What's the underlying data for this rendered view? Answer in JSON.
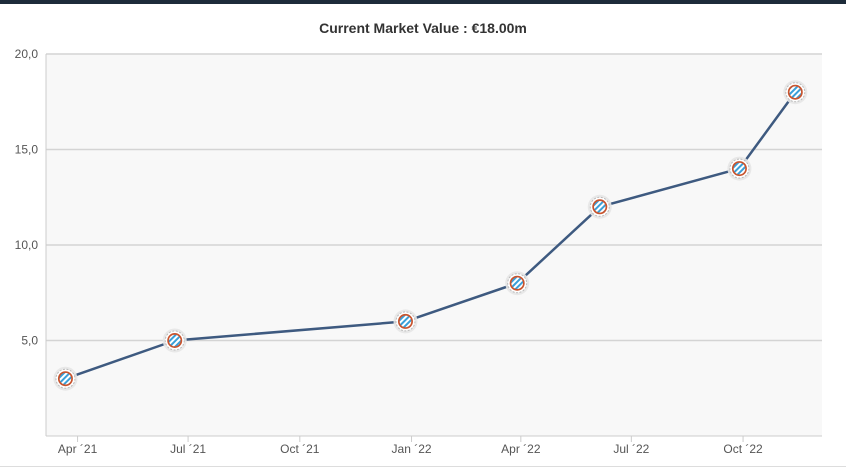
{
  "chart_data": {
    "type": "line",
    "title": "Current Market Value : €18.00m",
    "xlabel": "",
    "ylabel": "",
    "ylim": [
      0,
      20
    ],
    "yticks": [
      {
        "value": 5,
        "label": "5,0"
      },
      {
        "value": 10,
        "label": "10,0"
      },
      {
        "value": 15,
        "label": "15,0"
      },
      {
        "value": 20,
        "label": "20,0"
      }
    ],
    "xlim": [
      "2021-03-06",
      "2022-12-05"
    ],
    "xticks": [
      {
        "date": "2021-04-01",
        "label": "Apr ´21"
      },
      {
        "date": "2021-07-01",
        "label": "Jul ´21"
      },
      {
        "date": "2021-10-01",
        "label": "Oct ´21"
      },
      {
        "date": "2022-01-01",
        "label": "Jan ´22"
      },
      {
        "date": "2022-04-01",
        "label": "Apr ´22"
      },
      {
        "date": "2022-07-01",
        "label": "Jul ´22"
      },
      {
        "date": "2022-10-01",
        "label": "Oct ´22"
      }
    ],
    "grid": true,
    "legend": "none",
    "colors": {
      "line": "#3e5a80",
      "plot_background": "#f8f8f8",
      "grid": "#d4d4d4",
      "marker_stripe": "#3a9fd8",
      "marker_ring": "#c8542e"
    },
    "marker_icon": "club-crest-icon",
    "series": [
      {
        "points": [
          {
            "x": "2021-03-22",
            "y": 3.0
          },
          {
            "x": "2021-06-20",
            "y": 5.0
          },
          {
            "x": "2021-12-27",
            "y": 6.0
          },
          {
            "x": "2022-03-29",
            "y": 8.0
          },
          {
            "x": "2022-06-05",
            "y": 12.0
          },
          {
            "x": "2022-09-28",
            "y": 14.0
          },
          {
            "x": "2022-11-13",
            "y": 18.0
          }
        ]
      }
    ]
  }
}
